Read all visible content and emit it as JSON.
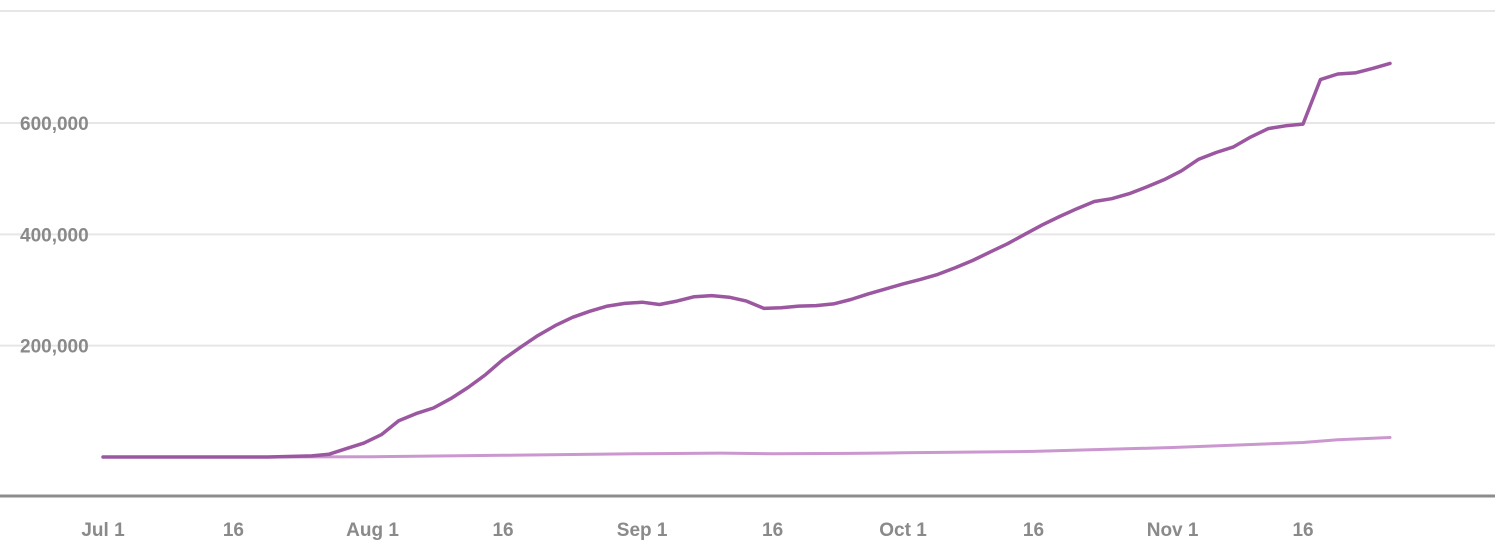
{
  "chart_data": {
    "type": "line",
    "title": "",
    "xlabel": "",
    "ylabel": "",
    "x_range": [
      "2020-07-01",
      "2020-12-06"
    ],
    "ylim": [
      -10000,
      800000
    ],
    "y_ticks": [
      200000,
      400000,
      600000
    ],
    "y_tick_labels": [
      "200,000",
      "400,000",
      "600,000"
    ],
    "x_ticks": [
      {
        "date": "2020-07-01",
        "label": "Jul 1"
      },
      {
        "date": "2020-07-16",
        "label": "16"
      },
      {
        "date": "2020-08-01",
        "label": "Aug 1"
      },
      {
        "date": "2020-08-16",
        "label": "16"
      },
      {
        "date": "2020-09-01",
        "label": "Sep 1"
      },
      {
        "date": "2020-09-16",
        "label": "16"
      },
      {
        "date": "2020-10-01",
        "label": "Oct 1"
      },
      {
        "date": "2020-10-16",
        "label": "16"
      },
      {
        "date": "2020-11-01",
        "label": "Nov 1"
      },
      {
        "date": "2020-11-16",
        "label": "16"
      }
    ],
    "grid": "horizontal",
    "legend": "none",
    "series": [
      {
        "color": "#9b57a0",
        "points": [
          [
            "2020-07-01",
            0
          ],
          [
            "2020-07-10",
            0
          ],
          [
            "2020-07-20",
            0
          ],
          [
            "2020-07-25",
            2000
          ],
          [
            "2020-07-27",
            5000
          ],
          [
            "2020-07-29",
            15000
          ],
          [
            "2020-07-31",
            25000
          ],
          [
            "2020-08-02",
            40000
          ],
          [
            "2020-08-04",
            65000
          ],
          [
            "2020-08-06",
            78000
          ],
          [
            "2020-08-08",
            88000
          ],
          [
            "2020-08-10",
            105000
          ],
          [
            "2020-08-12",
            125000
          ],
          [
            "2020-08-14",
            148000
          ],
          [
            "2020-08-16",
            175000
          ],
          [
            "2020-08-18",
            197000
          ],
          [
            "2020-08-20",
            218000
          ],
          [
            "2020-08-22",
            236000
          ],
          [
            "2020-08-24",
            251000
          ],
          [
            "2020-08-26",
            262000
          ],
          [
            "2020-08-28",
            271000
          ],
          [
            "2020-08-30",
            276000
          ],
          [
            "2020-09-01",
            278000
          ],
          [
            "2020-09-03",
            274000
          ],
          [
            "2020-09-05",
            280000
          ],
          [
            "2020-09-07",
            288000
          ],
          [
            "2020-09-09",
            290000
          ],
          [
            "2020-09-11",
            287000
          ],
          [
            "2020-09-13",
            280000
          ],
          [
            "2020-09-15",
            267000
          ],
          [
            "2020-09-17",
            268000
          ],
          [
            "2020-09-19",
            271000
          ],
          [
            "2020-09-21",
            272000
          ],
          [
            "2020-09-23",
            275000
          ],
          [
            "2020-09-25",
            283000
          ],
          [
            "2020-09-27",
            293000
          ],
          [
            "2020-09-29",
            302000
          ],
          [
            "2020-10-01",
            311000
          ],
          [
            "2020-10-03",
            319000
          ],
          [
            "2020-10-05",
            328000
          ],
          [
            "2020-10-07",
            340000
          ],
          [
            "2020-10-09",
            353000
          ],
          [
            "2020-10-11",
            368000
          ],
          [
            "2020-10-13",
            383000
          ],
          [
            "2020-10-15",
            400000
          ],
          [
            "2020-10-17",
            417000
          ],
          [
            "2020-10-19",
            432000
          ],
          [
            "2020-10-21",
            446000
          ],
          [
            "2020-10-23",
            459000
          ],
          [
            "2020-10-25",
            464000
          ],
          [
            "2020-10-27",
            473000
          ],
          [
            "2020-10-29",
            485000
          ],
          [
            "2020-10-31",
            498000
          ],
          [
            "2020-11-02",
            514000
          ],
          [
            "2020-11-04",
            535000
          ],
          [
            "2020-11-06",
            547000
          ],
          [
            "2020-11-08",
            557000
          ],
          [
            "2020-11-10",
            575000
          ],
          [
            "2020-11-12",
            590000
          ],
          [
            "2020-11-14",
            595000
          ],
          [
            "2020-11-16",
            598000
          ],
          [
            "2020-11-18",
            678000
          ],
          [
            "2020-11-20",
            688000
          ],
          [
            "2020-11-22",
            690000
          ],
          [
            "2020-11-24",
            698000
          ],
          [
            "2020-11-26",
            707000
          ]
        ]
      },
      {
        "color": "#cb97cf",
        "points": [
          [
            "2020-07-01",
            0
          ],
          [
            "2020-07-15",
            0
          ],
          [
            "2020-08-01",
            500
          ],
          [
            "2020-08-16",
            3000
          ],
          [
            "2020-09-01",
            6000
          ],
          [
            "2020-09-10",
            7000
          ],
          [
            "2020-09-16",
            6000
          ],
          [
            "2020-09-25",
            6500
          ],
          [
            "2020-10-01",
            7500
          ],
          [
            "2020-10-16",
            10000
          ],
          [
            "2020-11-01",
            17000
          ],
          [
            "2020-11-16",
            26000
          ],
          [
            "2020-11-20",
            31000
          ],
          [
            "2020-11-26",
            35000
          ]
        ]
      }
    ]
  }
}
